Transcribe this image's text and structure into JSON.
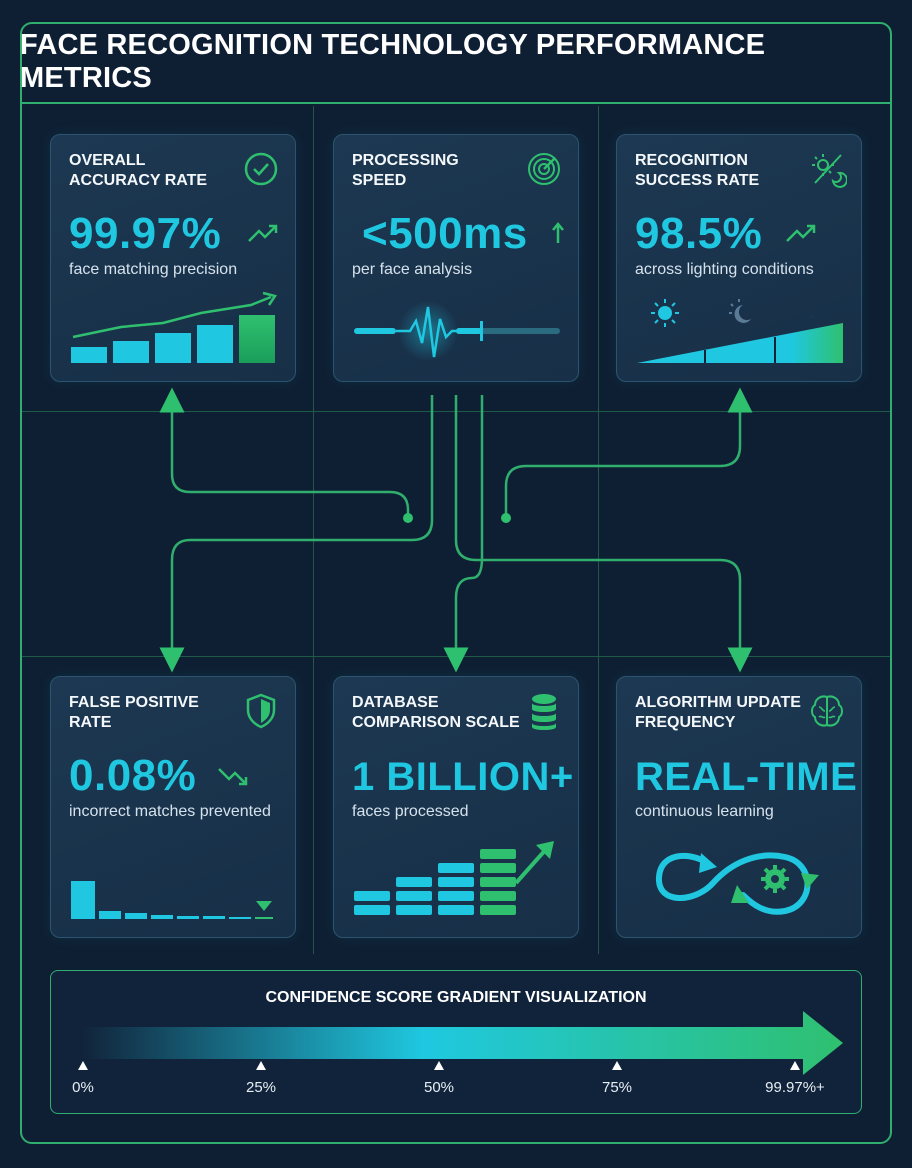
{
  "title": "FACE RECOGNITION TECHNOLOGY PERFORMANCE METRICS",
  "colors": {
    "accent_cyan": "#1fc8e0",
    "accent_green": "#2fc06f",
    "background": "#0f1f33",
    "frame": "#2fae6e"
  },
  "cards": {
    "accuracy": {
      "title_line1": "OVERALL",
      "title_line2": "ACCURACY RATE",
      "value": "99.97%",
      "sub": "face matching precision",
      "icon": "check-circle-icon",
      "trend_icon": "trend-up-icon"
    },
    "speed": {
      "title_line1": "PROCESSING",
      "title_line2": "SPEED",
      "value": "<500ms",
      "sub": "per face analysis",
      "icon": "radar-icon",
      "trend_icon": "arrow-up-icon"
    },
    "success": {
      "title_line1": "RECOGNITION",
      "title_line2": "SUCCESS RATE",
      "value": "98.5%",
      "sub": "across lighting conditions",
      "icon": "day-night-icon",
      "trend_icon": "trend-up-icon"
    },
    "false_positive": {
      "title_line1": "FALSE POSITIVE",
      "title_line2": "RATE",
      "value": "0.08%",
      "sub": "incorrect matches prevented",
      "icon": "shield-icon",
      "trend_icon": "trend-down-icon"
    },
    "database": {
      "title_line1": "DATABASE",
      "title_line2": "COMPARISON SCALE",
      "value": "1 BILLION+",
      "sub": "faces processed",
      "icon": "database-icon",
      "trend_icon": "trend-up-arrow-icon"
    },
    "algorithm": {
      "title_line1": "ALGORITHM UPDATE",
      "title_line2": "FREQUENCY",
      "value": "REAL-TIME",
      "sub": "continuous learning",
      "icon": "brain-icon",
      "loop_icon": "infinity-loop-gear-icon"
    }
  },
  "gradient": {
    "title": "CONFIDENCE SCORE GRADIENT VISUALIZATION",
    "ticks": [
      "0%",
      "25%",
      "50%",
      "75%",
      "99.97%+"
    ]
  }
}
